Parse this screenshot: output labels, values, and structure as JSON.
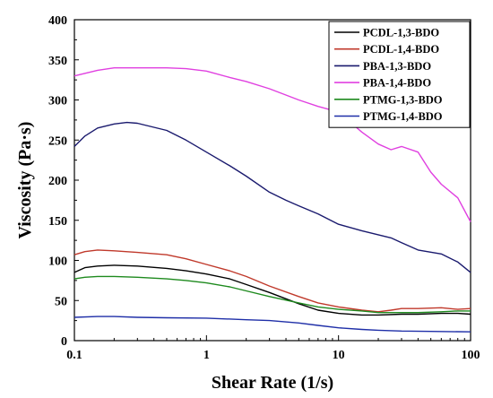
{
  "chart_data": {
    "type": "line",
    "title": "",
    "xlabel": "Shear Rate (1/s)",
    "ylabel": "Viscosity (Pa·s)",
    "xscale": "log",
    "xlim": [
      0.1,
      100
    ],
    "ylim": [
      0,
      400
    ],
    "xticks": [
      {
        "value": 0.1,
        "label": "0.1"
      },
      {
        "value": 1,
        "label": "1"
      },
      {
        "value": 10,
        "label": "10"
      },
      {
        "value": 100,
        "label": "100"
      }
    ],
    "yticks": [
      0,
      50,
      100,
      150,
      200,
      250,
      300,
      350,
      400
    ],
    "grid": false,
    "legend_position": "top-right",
    "series": [
      {
        "name": "PCDL-1,3-BDO",
        "color": "#000000",
        "points": [
          [
            0.1,
            85
          ],
          [
            0.12,
            91
          ],
          [
            0.15,
            93
          ],
          [
            0.2,
            94
          ],
          [
            0.3,
            93
          ],
          [
            0.5,
            90
          ],
          [
            0.7,
            87
          ],
          [
            1,
            83
          ],
          [
            1.5,
            77
          ],
          [
            2,
            70
          ],
          [
            3,
            60
          ],
          [
            5,
            46
          ],
          [
            7,
            38
          ],
          [
            10,
            34
          ],
          [
            15,
            32
          ],
          [
            20,
            32
          ],
          [
            30,
            33
          ],
          [
            40,
            33
          ],
          [
            60,
            34
          ],
          [
            80,
            34
          ],
          [
            100,
            33
          ]
        ]
      },
      {
        "name": "PCDL-1,4-BDO",
        "color": "#c0392b",
        "points": [
          [
            0.1,
            107
          ],
          [
            0.12,
            111
          ],
          [
            0.15,
            113
          ],
          [
            0.2,
            112
          ],
          [
            0.3,
            110
          ],
          [
            0.5,
            107
          ],
          [
            0.7,
            102
          ],
          [
            1,
            95
          ],
          [
            1.5,
            87
          ],
          [
            2,
            80
          ],
          [
            3,
            68
          ],
          [
            5,
            55
          ],
          [
            7,
            47
          ],
          [
            10,
            42
          ],
          [
            15,
            38
          ],
          [
            20,
            36
          ],
          [
            25,
            38
          ],
          [
            30,
            40
          ],
          [
            40,
            40
          ],
          [
            60,
            41
          ],
          [
            80,
            39
          ],
          [
            100,
            40
          ]
        ]
      },
      {
        "name": "PBA-1,3-BDO",
        "color": "#1a1a6e",
        "points": [
          [
            0.1,
            242
          ],
          [
            0.12,
            255
          ],
          [
            0.15,
            265
          ],
          [
            0.2,
            270
          ],
          [
            0.25,
            272
          ],
          [
            0.3,
            271
          ],
          [
            0.5,
            262
          ],
          [
            0.7,
            250
          ],
          [
            1,
            235
          ],
          [
            1.5,
            218
          ],
          [
            2,
            205
          ],
          [
            3,
            185
          ],
          [
            4,
            175
          ],
          [
            5,
            168
          ],
          [
            7,
            158
          ],
          [
            10,
            145
          ],
          [
            15,
            137
          ],
          [
            20,
            132
          ],
          [
            25,
            128
          ],
          [
            30,
            122
          ],
          [
            40,
            113
          ],
          [
            60,
            108
          ],
          [
            80,
            98
          ],
          [
            100,
            85
          ]
        ]
      },
      {
        "name": "PBA-1,4-BDO",
        "color": "#e040e0",
        "points": [
          [
            0.1,
            330
          ],
          [
            0.15,
            337
          ],
          [
            0.2,
            340
          ],
          [
            0.3,
            340
          ],
          [
            0.5,
            340
          ],
          [
            0.7,
            339
          ],
          [
            1,
            336
          ],
          [
            1.5,
            328
          ],
          [
            2,
            323
          ],
          [
            3,
            314
          ],
          [
            5,
            300
          ],
          [
            7,
            292
          ],
          [
            10,
            285
          ],
          [
            15,
            260
          ],
          [
            20,
            245
          ],
          [
            25,
            238
          ],
          [
            30,
            242
          ],
          [
            40,
            235
          ],
          [
            50,
            210
          ],
          [
            60,
            195
          ],
          [
            80,
            178
          ],
          [
            100,
            148
          ]
        ]
      },
      {
        "name": "PTMG-1,3-BDO",
        "color": "#1e8a1e",
        "points": [
          [
            0.1,
            77
          ],
          [
            0.12,
            79
          ],
          [
            0.15,
            80
          ],
          [
            0.2,
            80
          ],
          [
            0.3,
            79
          ],
          [
            0.5,
            77
          ],
          [
            0.7,
            75
          ],
          [
            1,
            72
          ],
          [
            1.5,
            67
          ],
          [
            2,
            62
          ],
          [
            3,
            55
          ],
          [
            5,
            47
          ],
          [
            7,
            42
          ],
          [
            10,
            39
          ],
          [
            15,
            37
          ],
          [
            20,
            35
          ],
          [
            30,
            35
          ],
          [
            40,
            35
          ],
          [
            60,
            36
          ],
          [
            80,
            37
          ],
          [
            100,
            37
          ]
        ]
      },
      {
        "name": "PTMG-1,4-BDO",
        "color": "#1f2fa8",
        "points": [
          [
            0.1,
            29
          ],
          [
            0.15,
            30
          ],
          [
            0.2,
            30
          ],
          [
            0.3,
            29
          ],
          [
            0.5,
            28.5
          ],
          [
            1,
            28
          ],
          [
            2,
            26
          ],
          [
            3,
            25
          ],
          [
            5,
            22
          ],
          [
            7,
            19
          ],
          [
            10,
            16
          ],
          [
            15,
            14
          ],
          [
            20,
            13
          ],
          [
            30,
            12
          ],
          [
            50,
            11.5
          ],
          [
            100,
            11
          ]
        ]
      }
    ]
  }
}
